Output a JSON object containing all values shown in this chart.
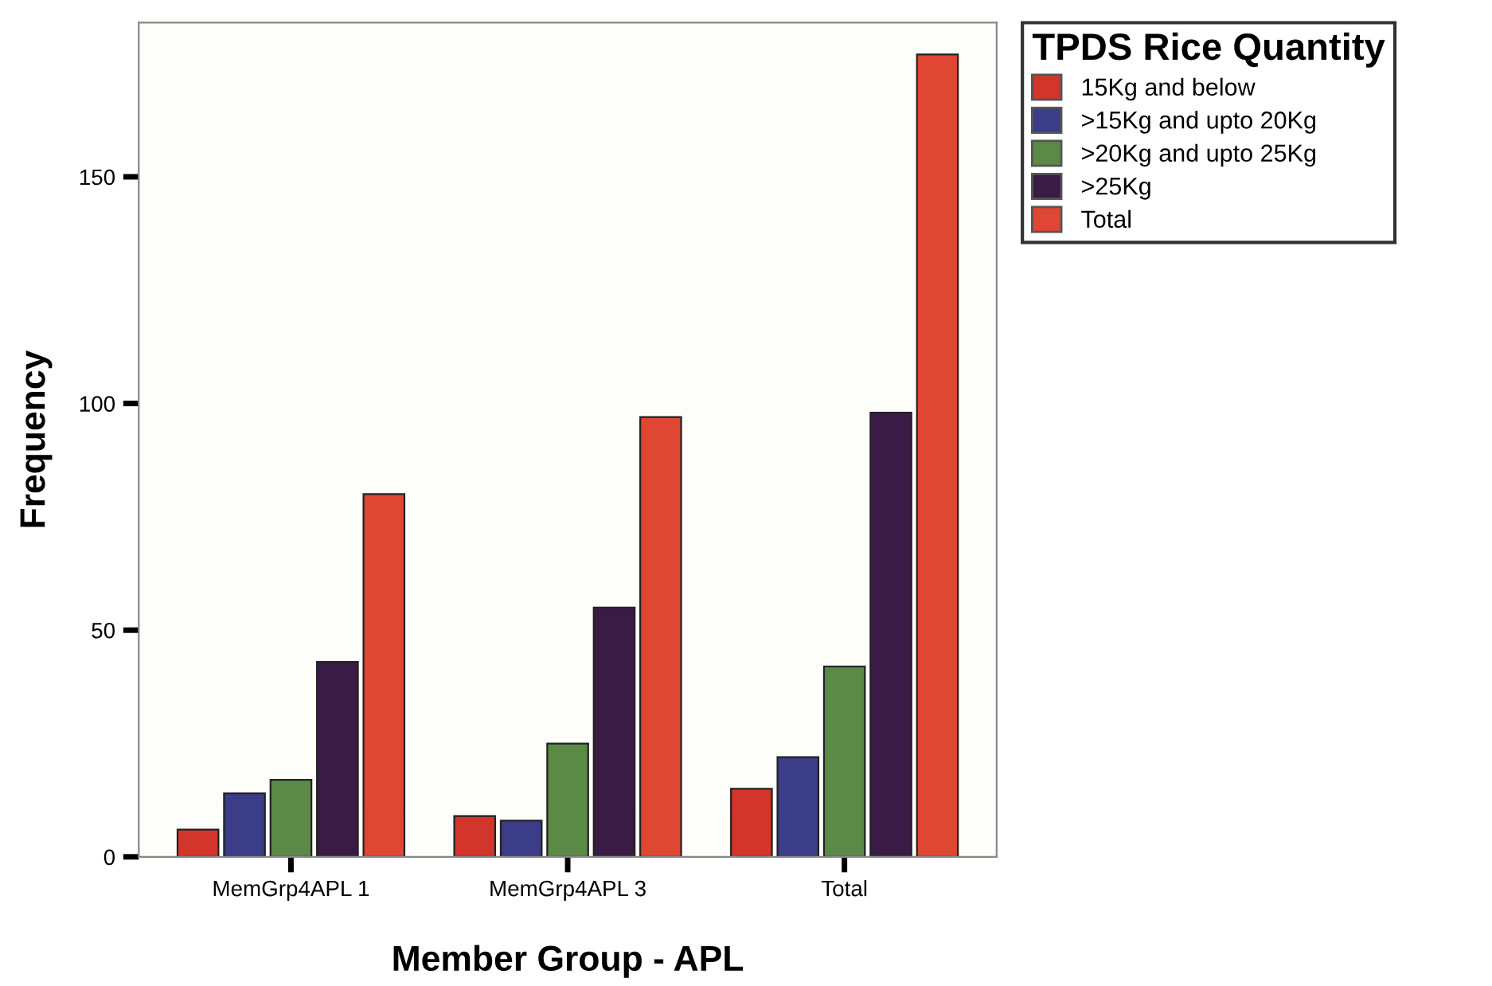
{
  "chart_data": {
    "type": "bar",
    "xlabel": "Member Group - APL",
    "ylabel": "Frequency",
    "legend_title": "TPDS Rice Quantity",
    "categories": [
      "MemGrp4APL 1",
      "MemGrp4APL 3",
      "Total"
    ],
    "series": [
      {
        "name": "15Kg and below",
        "color": "#d2352a",
        "values": [
          6,
          9,
          15
        ]
      },
      {
        "name": ">15Kg and upto 20Kg",
        "color": "#3b3d88",
        "values": [
          14,
          8,
          22
        ]
      },
      {
        "name": ">20Kg and upto 25Kg",
        "color": "#5b8a47",
        "values": [
          17,
          25,
          42
        ]
      },
      {
        "name": ">25Kg",
        "color": "#3a1b45",
        "values": [
          43,
          55,
          98
        ]
      },
      {
        "name": "Total",
        "color": "#e04634",
        "values": [
          80,
          97,
          177
        ]
      }
    ],
    "ylim": [
      0,
      184
    ],
    "yticks": [
      0,
      50,
      100,
      150
    ],
    "grid": false,
    "legend": "top right"
  }
}
